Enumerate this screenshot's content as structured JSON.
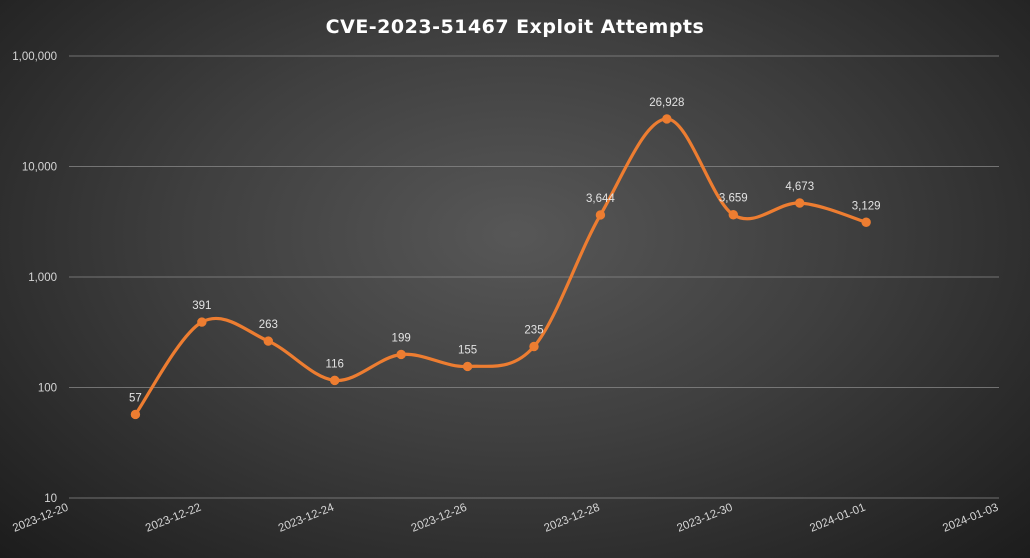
{
  "chart_data": {
    "type": "line",
    "title": "CVE-2023-51467 Exploit Attempts",
    "xlabel": "",
    "ylabel": "",
    "y_scale": "log",
    "ylim": [
      10,
      100000
    ],
    "yticks": [
      10,
      100,
      1000,
      10000,
      100000
    ],
    "ytick_labels": [
      "10",
      "100",
      "1,000",
      "10,000",
      "1,00,000"
    ],
    "xlim": [
      "2023-12-20",
      "2024-01-03"
    ],
    "xtick_labels": [
      "2023-12-20",
      "2023-12-22",
      "2023-12-24",
      "2023-12-26",
      "2023-12-28",
      "2023-12-30",
      "2024-01-01",
      "2024-01-03"
    ],
    "grid": true,
    "legend": "none",
    "color": "#ed7d31",
    "series": [
      {
        "x": [
          "2023-12-21",
          "2023-12-22",
          "2023-12-23",
          "2023-12-24",
          "2023-12-25",
          "2023-12-26",
          "2023-12-27",
          "2023-12-28",
          "2023-12-29",
          "2023-12-30",
          "2023-12-31",
          "2024-01-01"
        ],
        "values": [
          57,
          391,
          263,
          116,
          199,
          155,
          235,
          3644,
          26928,
          3659,
          4673,
          3129
        ],
        "labels": [
          "57",
          "391",
          "263",
          "116",
          "199",
          "155",
          "235",
          "3,644",
          "26,928",
          "3,659",
          "4,673",
          "3,129"
        ]
      }
    ]
  }
}
